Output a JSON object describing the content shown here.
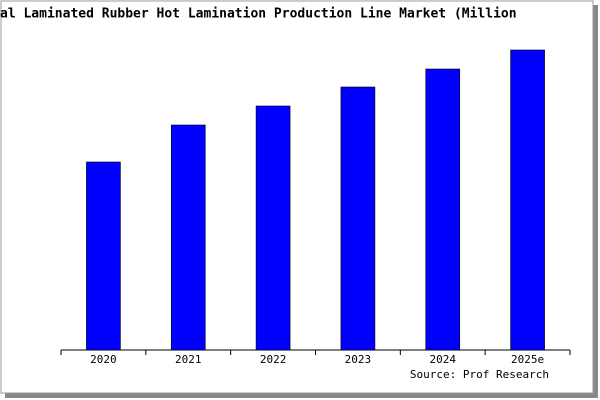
{
  "chart_data": {
    "type": "bar",
    "title": "al Laminated Rubber Hot Lamination Production Line Market (Million",
    "categories": [
      "2020",
      "2021",
      "2022",
      "2023",
      "2024",
      "2025e"
    ],
    "values": [
      188,
      225,
      244,
      263,
      281,
      300
    ],
    "color": "#0000ff",
    "ylim": [
      0,
      300
    ],
    "source": "Source: Prof Research"
  }
}
